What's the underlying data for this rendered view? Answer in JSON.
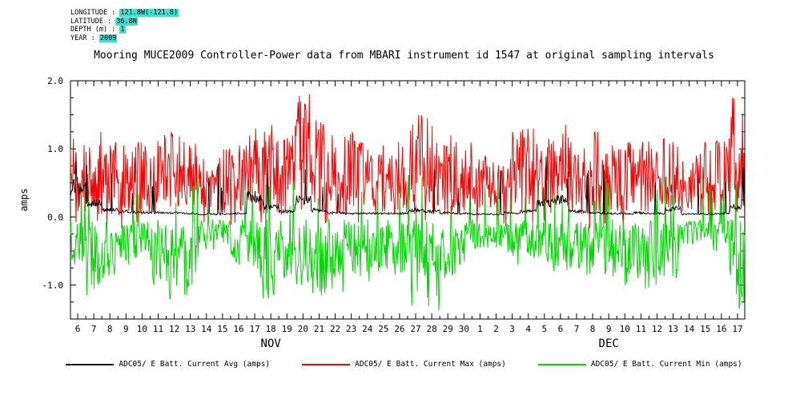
{
  "meta": {
    "rows": [
      {
        "label": "LONGITUDE :",
        "value": "121.8W(-121.8)"
      },
      {
        "label": "LATITUDE :",
        "value": "36.8N"
      },
      {
        "label": "DEPTH (m) :",
        "value": "1"
      },
      {
        "label": "YEAR :",
        "value": "2009"
      }
    ],
    "highlight_color": "#3fe0d0"
  },
  "title": "Mooring MUCE2009 Controller-Power data from MBARI instrument id 1547 at original sampling intervals",
  "chart_data": {
    "type": "line",
    "title": "Mooring MUCE2009 Controller-Power data from MBARI instrument id 1547 at original sampling intervals",
    "xlabel": "",
    "ylabel": "amps",
    "ylim": [
      -1.5,
      2.0
    ],
    "yticks": [
      2.0,
      1.0,
      0.0,
      -1.0
    ],
    "ytick_labels": [
      "2.0",
      "1.0",
      "0.0",
      "-1.0"
    ],
    "grid": false,
    "legend_position": "bottom",
    "x_months": [
      {
        "label": "NOV",
        "days": [
          6,
          7,
          8,
          9,
          10,
          11,
          12,
          13,
          14,
          15,
          16,
          17,
          18,
          19,
          20,
          21,
          22,
          23,
          24,
          25,
          26,
          27,
          28,
          29,
          30
        ]
      },
      {
        "label": "DEC",
        "days": [
          1,
          2,
          3,
          4,
          5,
          6,
          7,
          8,
          9,
          10,
          11,
          12,
          13,
          14,
          15,
          16,
          17
        ]
      }
    ],
    "samples_per_day": 24,
    "series": [
      {
        "name": "ADC05/ E Batt. Current Avg (amps)",
        "color": "#000000",
        "role": "avg",
        "daily_values": [
          0.45,
          0.2,
          0.1,
          0.08,
          0.07,
          0.06,
          0.06,
          0.05,
          0.04,
          0.04,
          0.05,
          0.3,
          0.15,
          0.08,
          0.25,
          0.1,
          0.06,
          0.05,
          0.05,
          0.05,
          0.05,
          0.1,
          0.08,
          0.06,
          0.05,
          0.04,
          0.04,
          0.06,
          0.08,
          0.2,
          0.25,
          0.08,
          0.06,
          0.05,
          0.05,
          0.06,
          0.05,
          0.12,
          0.04,
          0.04,
          0.05,
          0.15
        ]
      },
      {
        "name": "ADC05/ E Batt. Current Max (amps)",
        "color": "#ff0000",
        "role": "max",
        "daily_values": [
          1.15,
          1.25,
          1.1,
          1.05,
          1.1,
          1.2,
          1.25,
          1.1,
          0.85,
          1.0,
          1.05,
          1.3,
          1.35,
          1.2,
          1.8,
          1.45,
          1.2,
          1.25,
          1.1,
          1.05,
          1.1,
          1.5,
          1.45,
          1.2,
          1.1,
          0.9,
          0.8,
          1.25,
          1.3,
          1.15,
          1.35,
          1.1,
          1.3,
          1.05,
          1.1,
          1.2,
          1.15,
          1.1,
          0.9,
          1.1,
          1.15,
          1.75
        ]
      },
      {
        "name": "ADC05/ E Batt. Current Min (amps)",
        "color": "#00d800",
        "role": "min",
        "daily_values": [
          -0.7,
          -1.15,
          -0.9,
          -0.7,
          -0.6,
          -1.0,
          -1.2,
          -1.15,
          -0.5,
          -0.4,
          -0.7,
          -0.9,
          -1.2,
          -0.9,
          -1.0,
          -1.15,
          -1.1,
          -0.9,
          -0.95,
          -0.8,
          -0.85,
          -1.3,
          -1.4,
          -0.9,
          -0.7,
          -0.5,
          -0.45,
          -0.7,
          -0.6,
          -0.65,
          -0.8,
          -0.75,
          -0.85,
          -0.9,
          -1.0,
          -1.05,
          -1.0,
          -0.9,
          -0.4,
          -0.35,
          -0.5,
          -1.35
        ]
      }
    ]
  }
}
